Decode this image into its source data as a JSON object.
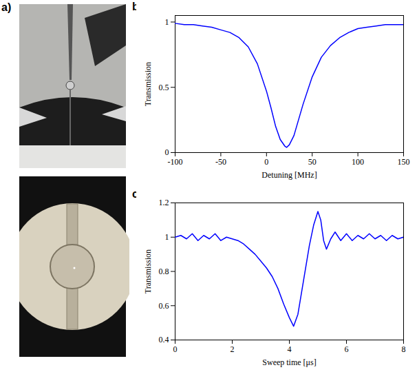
{
  "photos": {
    "label": "a)"
  },
  "chart_data": [
    {
      "type": "line",
      "title": "b)",
      "x_label": "Detuning [MHz]",
      "y_label": "Transmission",
      "xlim": [
        -100,
        150
      ],
      "xticks": [
        -100,
        -50,
        0,
        50,
        100,
        150
      ],
      "ylim": [
        0,
        1.05
      ],
      "yticks": [
        0,
        0.5,
        1
      ],
      "grid": false,
      "series": [
        {
          "name": null,
          "color": "#0000ff",
          "x": [
            -100,
            -90,
            -80,
            -70,
            -60,
            -50,
            -40,
            -30,
            -20,
            -10,
            0,
            5,
            10,
            15,
            20,
            22,
            25,
            30,
            35,
            40,
            50,
            60,
            70,
            80,
            90,
            100,
            110,
            120,
            130,
            140,
            150
          ],
          "values": [
            0.99,
            0.98,
            0.98,
            0.97,
            0.96,
            0.94,
            0.92,
            0.88,
            0.81,
            0.68,
            0.47,
            0.34,
            0.2,
            0.1,
            0.05,
            0.04,
            0.06,
            0.13,
            0.25,
            0.37,
            0.58,
            0.73,
            0.82,
            0.88,
            0.92,
            0.95,
            0.96,
            0.97,
            0.98,
            0.98,
            0.98
          ]
        }
      ]
    },
    {
      "type": "line",
      "title": "c)",
      "x_label": "Sweep time [μs]",
      "y_label": "Transmission",
      "xlim": [
        0,
        8
      ],
      "xticks": [
        0,
        2,
        4,
        6,
        8
      ],
      "ylim": [
        0.4,
        1.2
      ],
      "yticks": [
        0.4,
        0.6,
        0.8,
        1,
        1.2
      ],
      "grid": false,
      "series": [
        {
          "name": null,
          "color": "#0000ff",
          "x": [
            0,
            0.2,
            0.4,
            0.6,
            0.8,
            1.0,
            1.2,
            1.4,
            1.6,
            1.8,
            2.0,
            2.2,
            2.4,
            2.6,
            2.8,
            3.0,
            3.2,
            3.4,
            3.6,
            3.8,
            4.0,
            4.15,
            4.3,
            4.5,
            4.7,
            4.85,
            5.0,
            5.1,
            5.2,
            5.3,
            5.45,
            5.6,
            5.8,
            6.0,
            6.2,
            6.4,
            6.6,
            6.8,
            7.0,
            7.2,
            7.4,
            7.6,
            7.8,
            8.0
          ],
          "values": [
            1.0,
            1.01,
            0.99,
            1.02,
            0.98,
            1.01,
            0.99,
            1.02,
            0.98,
            1.0,
            0.99,
            0.98,
            0.96,
            0.93,
            0.9,
            0.86,
            0.82,
            0.77,
            0.7,
            0.61,
            0.53,
            0.48,
            0.55,
            0.75,
            0.95,
            1.07,
            1.15,
            1.1,
            0.98,
            0.93,
            0.99,
            1.03,
            0.98,
            1.02,
            0.98,
            1.01,
            0.99,
            1.02,
            0.99,
            1.01,
            0.98,
            1.01,
            0.99,
            1.0
          ]
        }
      ]
    }
  ]
}
